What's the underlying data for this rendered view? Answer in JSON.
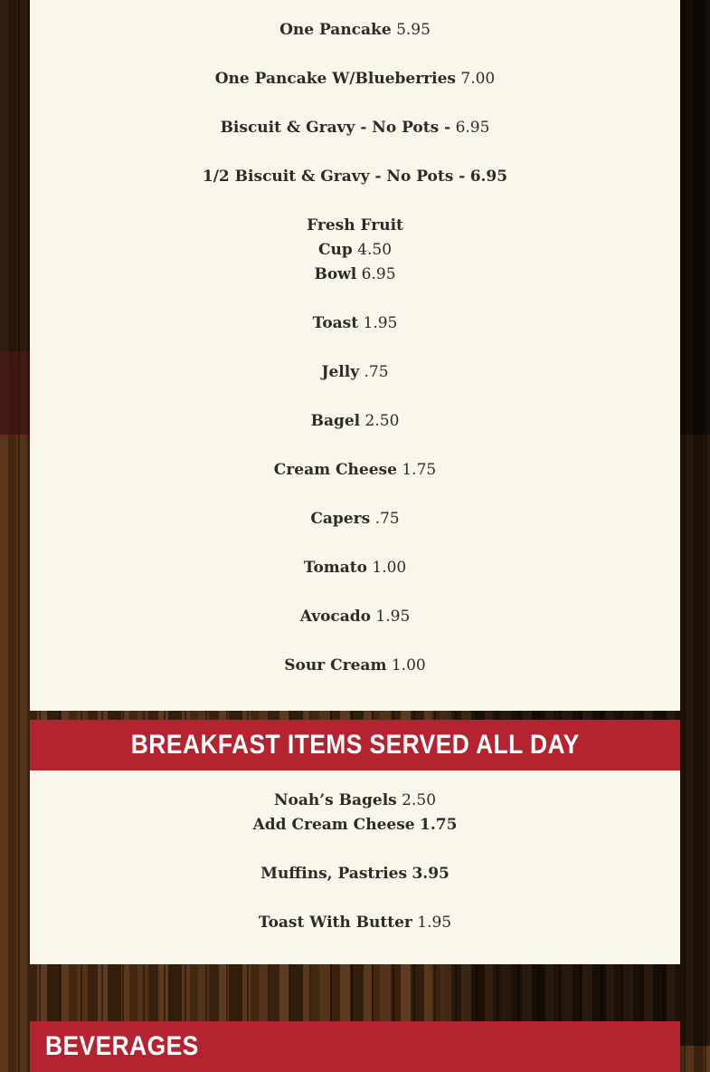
{
  "page": {
    "description": "Restaurant breakfast menu on dark wood background"
  },
  "colors": {
    "accent_red": "#b4232f",
    "panel_cream": "#f9f6eb",
    "text_dark": "#2d2b24",
    "header_text": "#ffffff"
  },
  "sections": [
    {
      "title": "",
      "items": [
        {
          "lines": [
            {
              "name": "One Pancake",
              "price": "5.95",
              "price_bold": false
            }
          ]
        },
        {
          "lines": [
            {
              "name": "One Pancake W/Blueberries",
              "price": "7.00",
              "price_bold": false
            }
          ]
        },
        {
          "lines": [
            {
              "name": "Biscuit & Gravy - No Pots -",
              "price": "6.95",
              "price_bold": false
            }
          ]
        },
        {
          "lines": [
            {
              "name": "1/2 Biscuit & Gravy - No Pots -",
              "price": "6.95",
              "price_bold": true
            }
          ]
        },
        {
          "lines": [
            {
              "name": "Fresh Fruit",
              "price": "",
              "price_bold": false
            },
            {
              "name": "Cup",
              "price": "4.50",
              "price_bold": false
            },
            {
              "name": "Bowl",
              "price": "6.95",
              "price_bold": false
            }
          ]
        },
        {
          "lines": [
            {
              "name": "Toast",
              "price": "1.95",
              "price_bold": false
            }
          ]
        },
        {
          "lines": [
            {
              "name": "Jelly",
              "price": ".75",
              "price_bold": false
            }
          ]
        },
        {
          "lines": [
            {
              "name": "Bagel",
              "price": "2.50",
              "price_bold": false
            }
          ]
        },
        {
          "lines": [
            {
              "name": "Cream Cheese",
              "price": "1.75",
              "price_bold": false
            }
          ]
        },
        {
          "lines": [
            {
              "name": "Capers",
              "price": ".75",
              "price_bold": false
            }
          ]
        },
        {
          "lines": [
            {
              "name": "Tomato",
              "price": "1.00",
              "price_bold": false
            }
          ]
        },
        {
          "lines": [
            {
              "name": "Avocado",
              "price": "1.95",
              "price_bold": false
            }
          ]
        },
        {
          "lines": [
            {
              "name": "Sour Cream",
              "price": "1.00",
              "price_bold": false
            }
          ]
        }
      ]
    },
    {
      "title": "BREAKFAST ITEMS SERVED ALL DAY",
      "items": [
        {
          "lines": [
            {
              "name": "Noah’s Bagels",
              "price": "2.50",
              "price_bold": false
            },
            {
              "name": "Add Cream Cheese",
              "price": "1.75",
              "price_bold": true
            }
          ]
        },
        {
          "lines": [
            {
              "name": "Muffins, Pastries",
              "price": "3.95",
              "price_bold": true
            }
          ]
        },
        {
          "lines": [
            {
              "name": "Toast With Butter",
              "price": "1.95",
              "price_bold": false
            }
          ]
        }
      ]
    },
    {
      "title": "BEVERAGES",
      "items": []
    }
  ]
}
